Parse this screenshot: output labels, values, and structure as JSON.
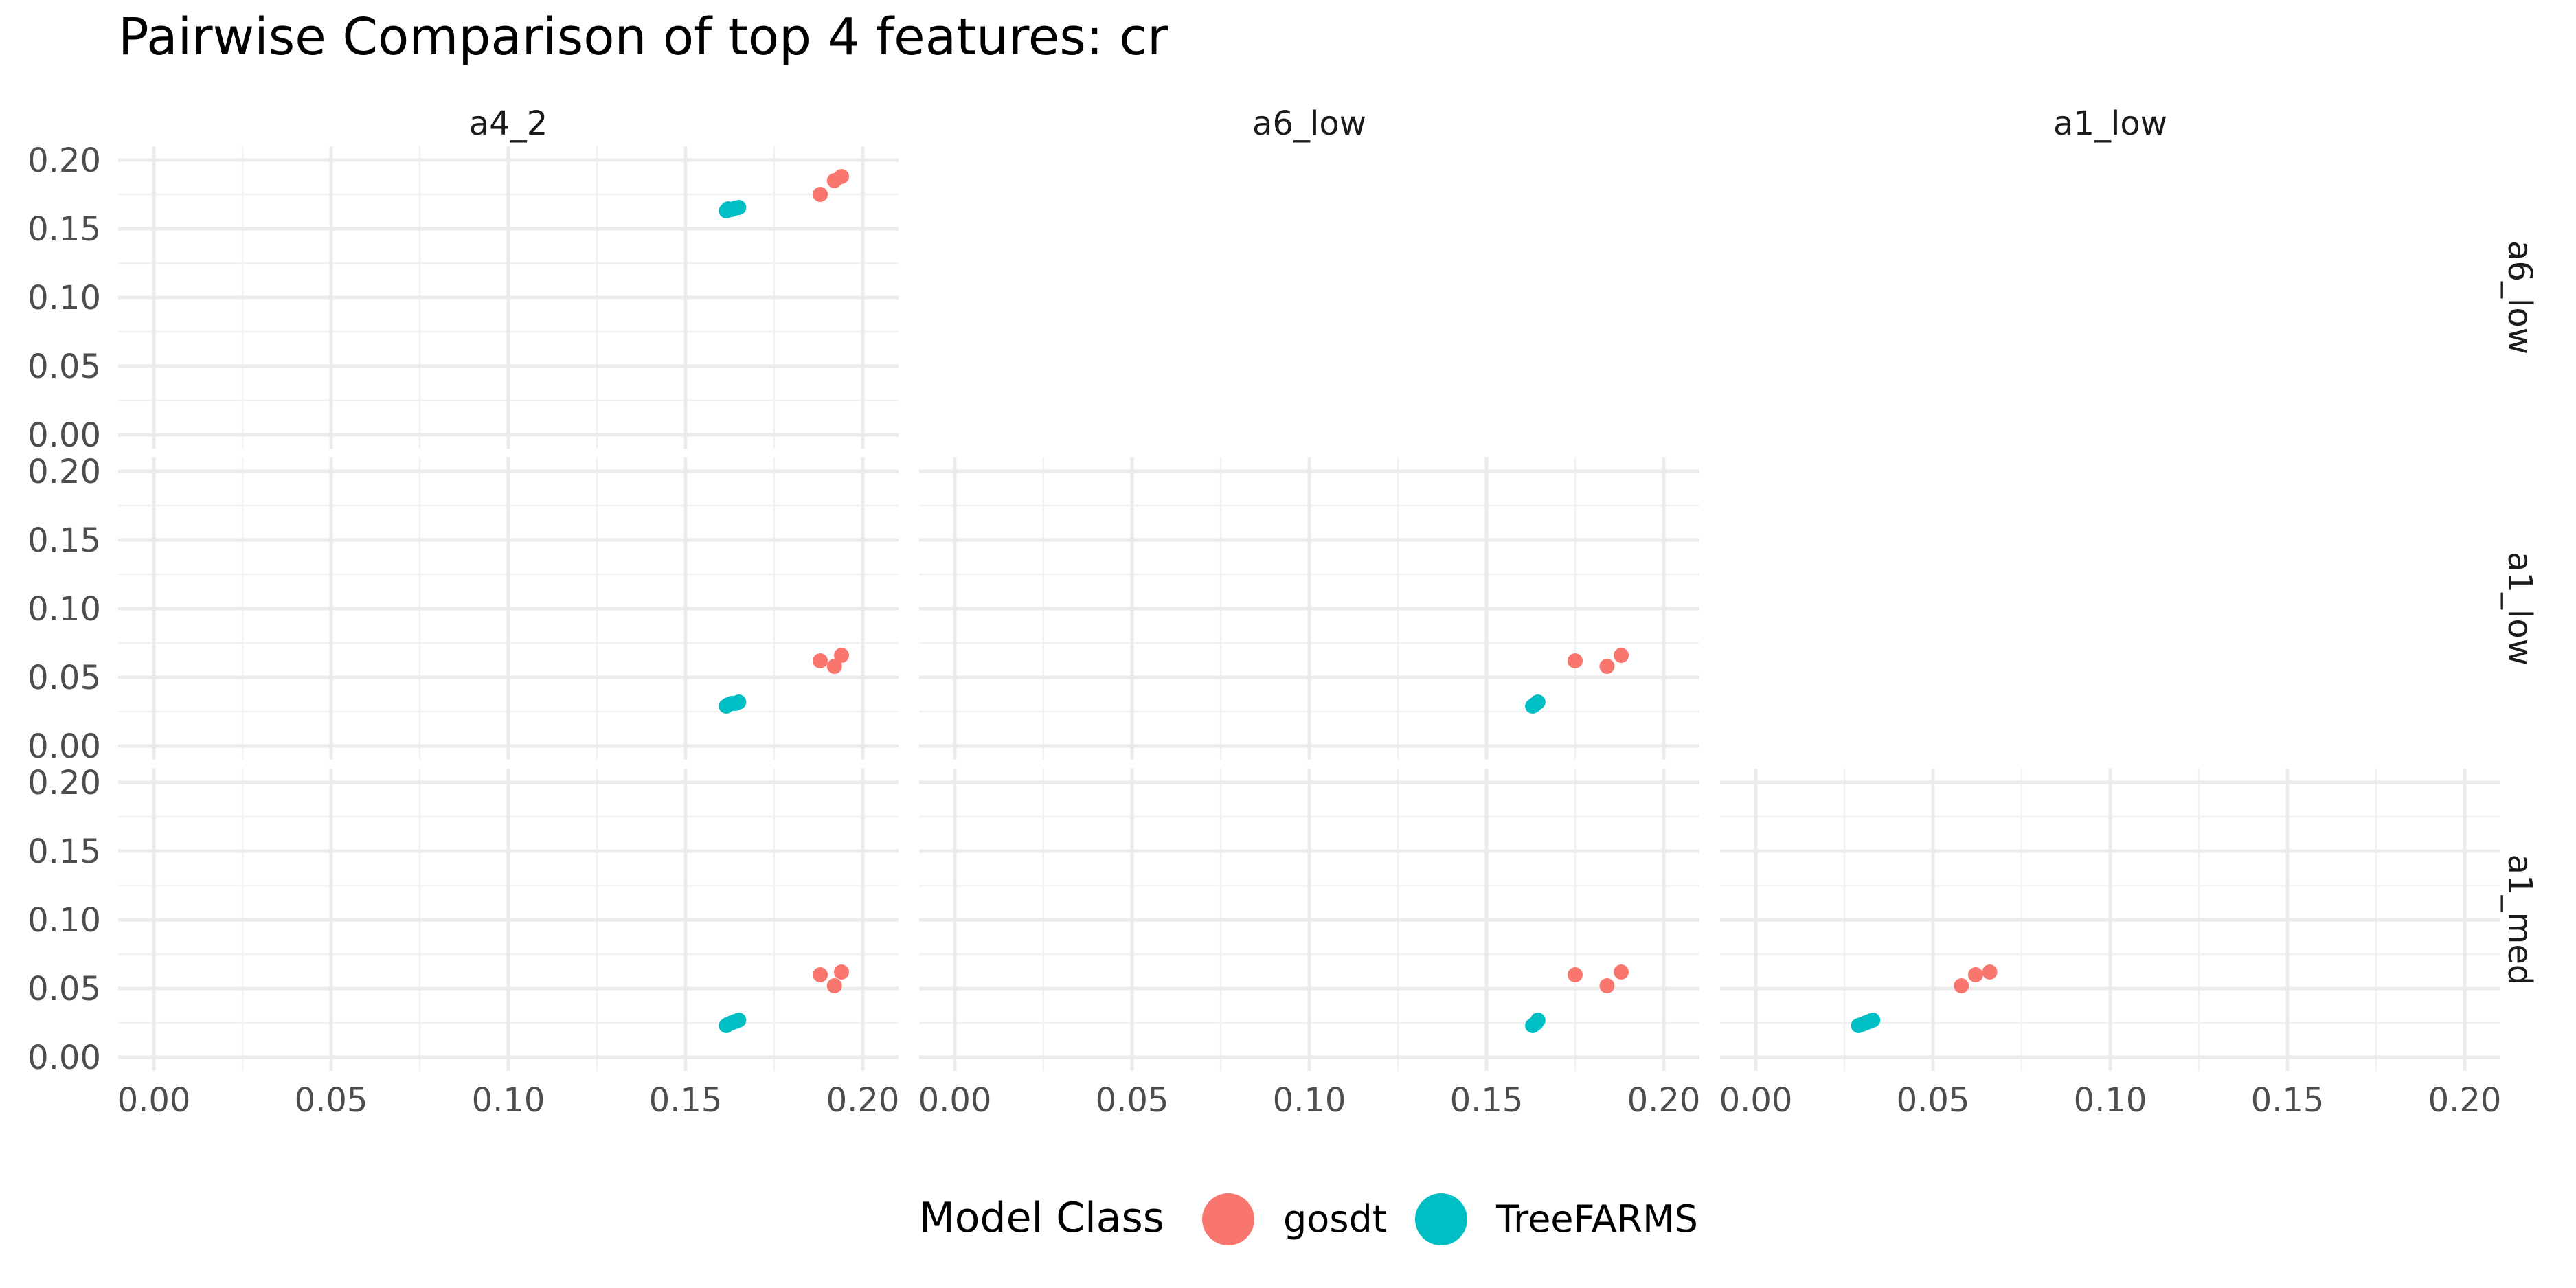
{
  "chart_data": {
    "type": "scatter",
    "title": "Pairwise Comparison of top 4 features: cr",
    "column_features": [
      "a4_2",
      "a6_low",
      "a1_low"
    ],
    "row_features": [
      "a6_low",
      "a1_low",
      "a1_med"
    ],
    "xlim": [
      0,
      0.2
    ],
    "ylim": [
      0,
      0.2
    ],
    "x_ticks": [
      "0.00",
      "0.05",
      "0.10",
      "0.15",
      "0.20"
    ],
    "y_ticks": [
      "0.00",
      "0.05",
      "0.10",
      "0.15",
      "0.20"
    ],
    "grid": true,
    "legend": {
      "title": "Model Class",
      "position": "bottom",
      "entries": [
        {
          "name": "gosdt",
          "color": "#F8766D"
        },
        {
          "name": "TreeFARMS",
          "color": "#00BFC4"
        }
      ]
    },
    "panels": [
      {
        "column": "a4_2",
        "row": "a6_low",
        "series": [
          {
            "name": "gosdt",
            "points": [
              [
                0.188,
                0.175
              ],
              [
                0.192,
                0.185
              ],
              [
                0.194,
                0.188
              ]
            ]
          },
          {
            "name": "TreeFARMS",
            "points": [
              [
                0.1615,
                0.163
              ],
              [
                0.162,
                0.1645
              ],
              [
                0.163,
                0.164
              ],
              [
                0.164,
                0.165
              ],
              [
                0.165,
                0.1655
              ]
            ]
          }
        ]
      },
      {
        "column": "a4_2",
        "row": "a1_low",
        "series": [
          {
            "name": "gosdt",
            "points": [
              [
                0.188,
                0.062
              ],
              [
                0.192,
                0.058
              ],
              [
                0.194,
                0.066
              ]
            ]
          },
          {
            "name": "TreeFARMS",
            "points": [
              [
                0.1615,
                0.029
              ],
              [
                0.162,
                0.03
              ],
              [
                0.163,
                0.031
              ],
              [
                0.164,
                0.031
              ],
              [
                0.165,
                0.032
              ]
            ]
          }
        ]
      },
      {
        "column": "a6_low",
        "row": "a1_low",
        "series": [
          {
            "name": "gosdt",
            "points": [
              [
                0.175,
                0.062
              ],
              [
                0.184,
                0.058
              ],
              [
                0.188,
                0.066
              ]
            ]
          },
          {
            "name": "TreeFARMS",
            "points": [
              [
                0.163,
                0.029
              ],
              [
                0.1635,
                0.03
              ],
              [
                0.164,
                0.031
              ],
              [
                0.1645,
                0.032
              ]
            ]
          }
        ]
      },
      {
        "column": "a4_2",
        "row": "a1_med",
        "series": [
          {
            "name": "gosdt",
            "points": [
              [
                0.188,
                0.06
              ],
              [
                0.192,
                0.052
              ],
              [
                0.194,
                0.062
              ]
            ]
          },
          {
            "name": "TreeFARMS",
            "points": [
              [
                0.1615,
                0.023
              ],
              [
                0.162,
                0.024
              ],
              [
                0.163,
                0.025
              ],
              [
                0.164,
                0.026
              ],
              [
                0.165,
                0.027
              ]
            ]
          }
        ]
      },
      {
        "column": "a6_low",
        "row": "a1_med",
        "series": [
          {
            "name": "gosdt",
            "points": [
              [
                0.175,
                0.06
              ],
              [
                0.184,
                0.052
              ],
              [
                0.188,
                0.062
              ]
            ]
          },
          {
            "name": "TreeFARMS",
            "points": [
              [
                0.163,
                0.023
              ],
              [
                0.1635,
                0.024
              ],
              [
                0.164,
                0.025
              ],
              [
                0.1645,
                0.027
              ]
            ]
          }
        ]
      },
      {
        "column": "a1_low",
        "row": "a1_med",
        "series": [
          {
            "name": "gosdt",
            "points": [
              [
                0.058,
                0.052
              ],
              [
                0.062,
                0.06
              ],
              [
                0.066,
                0.062
              ]
            ]
          },
          {
            "name": "TreeFARMS",
            "points": [
              [
                0.029,
                0.023
              ],
              [
                0.03,
                0.024
              ],
              [
                0.031,
                0.025
              ],
              [
                0.032,
                0.026
              ],
              [
                0.033,
                0.027
              ]
            ]
          }
        ]
      }
    ]
  }
}
